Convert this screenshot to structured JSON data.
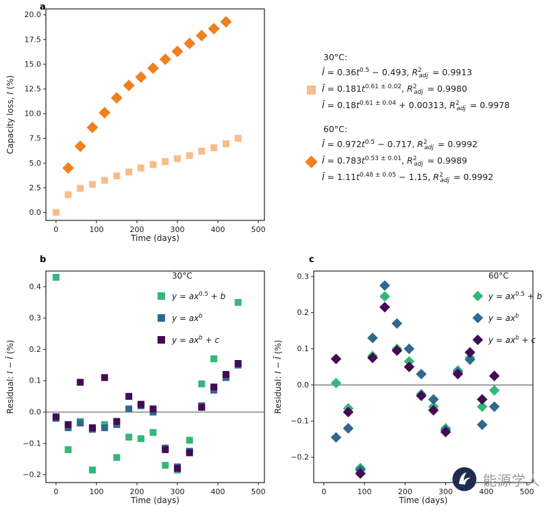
{
  "figure": {
    "panel_labels": {
      "a": "a",
      "b": "b",
      "c": "c"
    }
  },
  "fit_legend": {
    "groups": [
      {
        "title": "30°C:",
        "marker_shape": "square",
        "marker_color": "#f7bd8a",
        "equations": [
          "<i>Î</i> = 0.36<i>t</i><sup>0.5</sup> − 0.493, <i>R</i><sup>2</sup><sub class=\"rsub\"><i>adj</i></sub> = 0.9913",
          "<i>Î</i> = 0.181<i>t</i><sup>0.61 ± 0.02</sup>, <i>R</i><sup>2</sup><sub class=\"rsub\"><i>adj</i></sub> = 0.9980",
          "<i>Î</i> = 0.18<i>t</i><sup>0.61 ± 0.04</sup> + 0.00313, <i>R</i><sup>2</sup><sub class=\"rsub\"><i>adj</i></sub> = 0.9978"
        ]
      },
      {
        "title": "60°C:",
        "marker_shape": "diamond",
        "marker_color": "#f0801e",
        "equations": [
          "<i>Î</i> = 0.972<i>t</i><sup>0.5</sup> − 0.717, <i>R</i><sup>2</sup><sub class=\"rsub\"><i>adj</i></sub> = 0.9992",
          "<i>Î</i> = 0.783<i>t</i><sup>0.53 ± 0.01</sup>, <i>R</i><sup>2</sup><sub class=\"rsub\"><i>adj</i></sub> = 0.9989",
          "<i>Î</i> = 1.11<i>t</i><sup>0.48 ± 0.05</sup> − 1.15, <i>R</i><sup>2</sup><sub class=\"rsub\"><i>adj</i></sub> = 0.9992"
        ]
      }
    ]
  },
  "residual_legends": {
    "b": {
      "title": "30°C",
      "items": [
        {
          "color": "#35b779",
          "eq": "<i>y</i> = <i>ax</i><sup>0.5</sup> + <i>b</i>"
        },
        {
          "color": "#31688e",
          "eq": "<i>y</i> = <i>ax</i><sup><i>b</i></sup>"
        },
        {
          "color": "#440a54",
          "eq": "<i>y</i> = <i>ax</i><sup><i>b</i></sup> + <i>c</i>"
        }
      ]
    },
    "c": {
      "title": "60°C",
      "items": [
        {
          "color": "#35b779",
          "eq": "<i>y</i> = <i>ax</i><sup>0.5</sup> + <i>b</i>"
        },
        {
          "color": "#31688e",
          "eq": "<i>y</i> = <i>ax</i><sup><i>b</i></sup>"
        },
        {
          "color": "#440a54",
          "eq": "<i>y</i> = <i>ax</i><sup><i>b</i></sup> + <i>c</i>"
        }
      ]
    }
  },
  "watermark": {
    "text": "能源学人"
  },
  "chart_data": [
    {
      "id": "a",
      "type": "scatter",
      "title": "",
      "xlabel": "Time (days)",
      "ylabel": "Capacity loss, I (%)",
      "ylabel_html": "Capacity loss, <i>I</i> (%)",
      "xlim": [
        -25,
        515
      ],
      "ylim": [
        -0.8,
        20.6
      ],
      "xticks": [
        0,
        100,
        200,
        300,
        400,
        500
      ],
      "xtick_labels": [
        "0",
        "100",
        "200",
        "300",
        "400",
        "500"
      ],
      "yticks": [
        0,
        2.5,
        5,
        7.5,
        10,
        12.5,
        15,
        17.5,
        20
      ],
      "ytick_labels": [
        "0.0",
        "2.5",
        "5.0",
        "7.5",
        "10.0",
        "12.5",
        "15.0",
        "17.5",
        "20.0"
      ],
      "zero_line": false,
      "grid": false,
      "series": [
        {
          "name": "30°C",
          "key": "30c",
          "marker": "square",
          "color": "#f7bd8a",
          "size": 5,
          "x": [
            0,
            30,
            60,
            90,
            120,
            150,
            180,
            210,
            240,
            270,
            300,
            330,
            360,
            390,
            420,
            450
          ],
          "y": [
            0.0,
            1.8,
            2.45,
            2.85,
            3.25,
            3.7,
            4.1,
            4.5,
            4.85,
            5.15,
            5.45,
            5.75,
            6.2,
            6.55,
            6.95,
            7.5
          ]
        },
        {
          "name": "60°C",
          "key": "60c",
          "marker": "diamond",
          "color": "#f0801e",
          "size": 6,
          "x": [
            30,
            60,
            90,
            120,
            150,
            180,
            210,
            240,
            270,
            300,
            330,
            360,
            390,
            420
          ],
          "y": [
            4.5,
            6.7,
            8.6,
            10.1,
            11.6,
            12.85,
            13.7,
            14.6,
            15.5,
            16.3,
            17.1,
            17.9,
            18.6,
            19.3
          ]
        }
      ]
    },
    {
      "id": "b",
      "type": "scatter",
      "title": "30°C residuals",
      "xlabel": "Time (days)",
      "ylabel": "Residual: I − Î (%)",
      "ylabel_html": "Residual: <i>I</i> − <i>Î</i> (%)",
      "xlim": [
        -25,
        515
      ],
      "ylim": [
        -0.225,
        0.45
      ],
      "xticks": [
        0,
        100,
        200,
        300,
        400,
        500
      ],
      "xtick_labels": [
        "0",
        "100",
        "200",
        "300",
        "400",
        "500"
      ],
      "yticks": [
        -0.2,
        -0.1,
        0,
        0.1,
        0.2,
        0.3,
        0.4
      ],
      "ytick_labels": [
        "−0.2",
        "−0.1",
        "0.0",
        "0.1",
        "0.2",
        "0.3",
        "0.4"
      ],
      "zero_line": true,
      "grid": false,
      "series": [
        {
          "name": "y = ax^0.5 + b",
          "key": "sqrt-fit",
          "marker": "square",
          "color": "#35b779",
          "size": 5,
          "x": [
            0,
            30,
            60,
            90,
            120,
            150,
            180,
            210,
            240,
            270,
            300,
            330,
            360,
            390,
            420,
            450
          ],
          "y": [
            0.43,
            -0.12,
            -0.03,
            -0.185,
            -0.04,
            -0.145,
            -0.08,
            -0.085,
            -0.065,
            -0.17,
            -0.185,
            -0.09,
            0.09,
            0.17,
            0.12,
            0.35
          ]
        },
        {
          "name": "y = ax^b",
          "key": "power-fit",
          "marker": "square",
          "color": "#31688e",
          "size": 5,
          "x": [
            0,
            30,
            60,
            90,
            120,
            150,
            180,
            210,
            240,
            270,
            300,
            330,
            360,
            390,
            420,
            450
          ],
          "y": [
            -0.02,
            -0.05,
            -0.035,
            -0.055,
            -0.05,
            -0.04,
            0.01,
            0.02,
            0.0,
            -0.115,
            -0.175,
            -0.125,
            0.02,
            0.07,
            0.11,
            0.15
          ]
        },
        {
          "name": "y = ax^b + c",
          "key": "power-offset-fit",
          "marker": "square",
          "color": "#440a54",
          "size": 5,
          "x": [
            0,
            30,
            60,
            90,
            120,
            150,
            180,
            210,
            240,
            270,
            300,
            330,
            360,
            390,
            420,
            450
          ],
          "y": [
            -0.015,
            -0.04,
            0.095,
            -0.05,
            0.11,
            -0.03,
            0.05,
            0.025,
            0.01,
            -0.12,
            -0.18,
            -0.13,
            0.015,
            0.08,
            0.12,
            0.155
          ]
        }
      ]
    },
    {
      "id": "c",
      "type": "scatter",
      "title": "60°C residuals",
      "xlabel": "Time (days)",
      "ylabel": "Residual: I − Î (%)",
      "ylabel_html": "Residual: <i>I</i> − <i>Î</i> (%)",
      "xlim": [
        -25,
        515
      ],
      "ylim": [
        -0.27,
        0.315
      ],
      "xticks": [
        0,
        100,
        200,
        300,
        400,
        500
      ],
      "xtick_labels": [
        "0",
        "100",
        "200",
        "300",
        "400",
        "500"
      ],
      "yticks": [
        -0.2,
        -0.1,
        0,
        0.1,
        0.2,
        0.3
      ],
      "ytick_labels": [
        "−0.2",
        "−0.1",
        "0.0",
        "0.1",
        "0.2",
        "0.3"
      ],
      "zero_line": true,
      "grid": false,
      "series": [
        {
          "name": "y = ax^0.5 + b",
          "key": "sqrt-fit",
          "marker": "diamond",
          "color": "#35b779",
          "size": 5.5,
          "x": [
            30,
            60,
            90,
            120,
            150,
            180,
            210,
            240,
            270,
            300,
            330,
            360,
            390,
            420
          ],
          "y": [
            0.005,
            -0.065,
            -0.23,
            0.08,
            0.245,
            0.1,
            0.065,
            -0.025,
            -0.06,
            -0.12,
            0.04,
            0.075,
            -0.06,
            -0.015
          ]
        },
        {
          "name": "y = ax^b",
          "key": "power-fit",
          "marker": "diamond",
          "color": "#31688e",
          "size": 5.5,
          "x": [
            30,
            60,
            90,
            120,
            150,
            180,
            210,
            240,
            270,
            300,
            330,
            360,
            390,
            420
          ],
          "y": [
            -0.145,
            -0.12,
            -0.235,
            0.13,
            0.275,
            0.17,
            0.1,
            0.03,
            -0.04,
            -0.125,
            0.035,
            0.07,
            -0.11,
            -0.06
          ]
        },
        {
          "name": "y = ax^b + c",
          "key": "power-offset-fit",
          "marker": "diamond",
          "color": "#440a54",
          "size": 5.5,
          "x": [
            30,
            60,
            90,
            120,
            150,
            180,
            210,
            240,
            270,
            300,
            330,
            360,
            390,
            420
          ],
          "y": [
            0.072,
            -0.075,
            -0.245,
            0.075,
            0.215,
            0.095,
            0.05,
            -0.03,
            -0.07,
            -0.13,
            0.03,
            0.09,
            -0.04,
            0.025
          ]
        }
      ]
    }
  ]
}
